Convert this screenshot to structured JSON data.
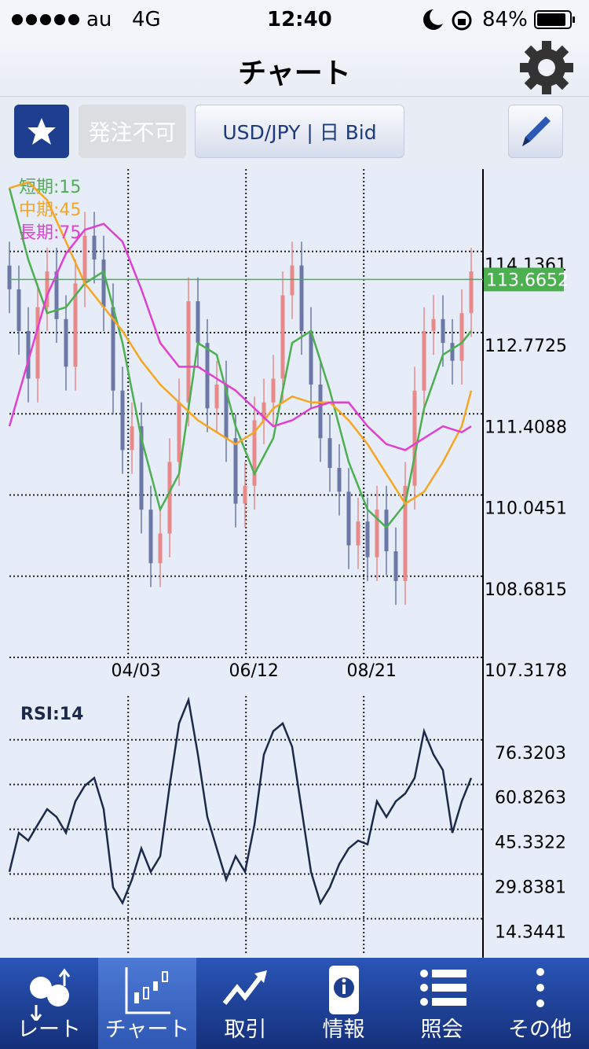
{
  "status_bar": {
    "carrier": "au",
    "network": "4G",
    "time": "12:40",
    "battery": "84%"
  },
  "header": {
    "title": "チャート"
  },
  "toolbar": {
    "order_status": "発注不可",
    "symbol": "USD/JPY | 日 Bid"
  },
  "chart_data": [
    {
      "type": "candlestick",
      "x": [
        0,
        1,
        2,
        3,
        4,
        5,
        6,
        7,
        8,
        9,
        10,
        11,
        12,
        13,
        14,
        15,
        16,
        17,
        18,
        19,
        20,
        21,
        22,
        23,
        24,
        25,
        26,
        27,
        28,
        29,
        30,
        31,
        32,
        33,
        34,
        35,
        36,
        37,
        38,
        39,
        40,
        41,
        42,
        43,
        44,
        45,
        46,
        47,
        48,
        49
      ],
      "open": [
        113.9,
        113.5,
        112.8,
        112.0,
        113.2,
        113.8,
        113.0,
        112.2,
        113.6,
        114.4,
        114.0,
        113.2,
        111.8,
        110.8,
        111.2,
        109.8,
        108.9,
        109.4,
        110.6,
        111.6,
        113.3,
        112.6,
        111.5,
        111.9,
        111.0,
        109.9,
        110.2,
        111.3,
        111.6,
        112.0,
        113.4,
        113.9,
        112.8,
        111.9,
        111.0,
        110.5,
        110.1,
        109.2,
        109.6,
        109.0,
        109.8,
        109.1,
        108.6,
        110.2,
        111.8,
        112.8,
        113.0,
        112.6,
        112.3,
        113.1
      ],
      "high": [
        114.3,
        113.9,
        113.2,
        113.6,
        114.2,
        114.2,
        113.4,
        114.0,
        114.8,
        114.8,
        114.4,
        113.6,
        112.2,
        111.6,
        111.6,
        110.2,
        109.8,
        111.0,
        112.0,
        113.7,
        113.7,
        113.0,
        112.3,
        112.3,
        111.4,
        110.6,
        111.7,
        112.0,
        112.4,
        113.8,
        114.3,
        114.3,
        113.2,
        112.3,
        111.4,
        110.9,
        110.5,
        110.0,
        110.0,
        110.2,
        110.2,
        109.5,
        110.6,
        112.2,
        113.2,
        113.4,
        113.4,
        113.0,
        113.5,
        114.2
      ],
      "low": [
        113.1,
        112.4,
        111.6,
        111.6,
        112.8,
        112.6,
        111.8,
        111.8,
        113.2,
        113.6,
        112.8,
        111.4,
        110.4,
        110.4,
        109.4,
        108.5,
        108.5,
        109.0,
        110.2,
        111.2,
        112.2,
        111.1,
        111.1,
        110.6,
        109.5,
        109.5,
        109.8,
        110.9,
        111.2,
        111.6,
        113.0,
        112.4,
        111.5,
        110.6,
        110.1,
        109.7,
        108.8,
        108.8,
        108.6,
        108.6,
        108.7,
        108.2,
        108.2,
        109.8,
        111.4,
        112.4,
        112.2,
        111.9,
        111.9,
        112.7
      ],
      "close": [
        113.5,
        112.8,
        112.0,
        113.2,
        113.8,
        113.0,
        112.2,
        113.6,
        114.4,
        114.0,
        113.2,
        111.8,
        110.8,
        111.2,
        109.8,
        108.9,
        109.4,
        110.6,
        111.6,
        113.3,
        112.6,
        111.5,
        111.9,
        111.0,
        109.9,
        110.2,
        111.3,
        111.6,
        112.0,
        113.4,
        113.9,
        112.8,
        111.9,
        111.0,
        110.5,
        110.1,
        109.2,
        109.6,
        109.0,
        109.8,
        109.1,
        108.6,
        110.2,
        111.8,
        112.8,
        113.0,
        112.6,
        112.3,
        113.1,
        113.8
      ],
      "up_color": "#e88a8a",
      "down_color": "#6b78a6",
      "series": [
        {
          "name": "短期:15",
          "color": "#4caf50",
          "x": [
            0,
            2,
            4,
            6,
            8,
            10,
            12,
            14,
            16,
            18,
            20,
            22,
            24,
            26,
            28,
            30,
            32,
            34,
            36,
            38,
            40,
            42,
            44,
            46,
            48,
            49
          ],
          "values": [
            115.2,
            114.0,
            113.1,
            113.2,
            113.6,
            113.8,
            112.6,
            111.0,
            109.8,
            110.4,
            112.6,
            112.4,
            111.2,
            110.4,
            111.0,
            112.6,
            112.8,
            111.8,
            110.6,
            109.8,
            109.5,
            109.9,
            111.5,
            112.4,
            112.6,
            112.8
          ]
        },
        {
          "name": "中期:45",
          "color": "#f5a623",
          "x": [
            0,
            2,
            4,
            6,
            8,
            10,
            12,
            14,
            16,
            18,
            20,
            22,
            24,
            26,
            28,
            30,
            32,
            34,
            36,
            38,
            40,
            42,
            44,
            46,
            48,
            49
          ],
          "values": [
            115.2,
            115.3,
            115.0,
            114.3,
            113.6,
            113.2,
            112.8,
            112.3,
            111.9,
            111.6,
            111.3,
            111.1,
            110.9,
            111.1,
            111.5,
            111.7,
            111.6,
            111.6,
            111.3,
            110.9,
            110.4,
            109.9,
            110.1,
            110.6,
            111.2,
            111.8
          ]
        },
        {
          "name": "長期:75",
          "color": "#e040d0",
          "x": [
            0,
            2,
            4,
            6,
            8,
            10,
            12,
            14,
            16,
            18,
            20,
            22,
            24,
            26,
            28,
            30,
            32,
            34,
            36,
            38,
            40,
            42,
            44,
            46,
            48,
            49
          ],
          "values": [
            111.2,
            112.3,
            113.4,
            114.1,
            114.5,
            114.6,
            114.3,
            113.5,
            112.6,
            112.2,
            112.2,
            112.0,
            111.8,
            111.5,
            111.2,
            111.3,
            111.5,
            111.6,
            111.6,
            111.2,
            110.9,
            110.8,
            111.0,
            111.2,
            111.1,
            111.2
          ]
        }
      ],
      "last_price": 113.6652,
      "last_price_color": "#4caf50",
      "xlim": [
        0,
        50.25
      ],
      "xticks": [
        {
          "value": 12.6,
          "label": "04/03"
        },
        {
          "value": 25.1,
          "label": "06/12"
        },
        {
          "value": 37.6,
          "label": "08/21"
        }
      ],
      "ylim": [
        107.3178,
        115.52
      ],
      "yticks": [
        114.1361,
        112.7725,
        111.4088,
        110.0451,
        108.6815,
        107.3178
      ],
      "grid": true
    },
    {
      "type": "line",
      "title": "RSI:14",
      "color": "#1c2a4a",
      "x": [
        0,
        1,
        2,
        3,
        4,
        5,
        6,
        7,
        8,
        9,
        10,
        11,
        12,
        13,
        14,
        15,
        16,
        17,
        18,
        19,
        20,
        21,
        22,
        23,
        24,
        25,
        26,
        27,
        28,
        29,
        30,
        31,
        32,
        33,
        34,
        35,
        36,
        37,
        38,
        39,
        40,
        41,
        42,
        43,
        44,
        45,
        46,
        47,
        48,
        49
      ],
      "values": [
        30.6,
        44.1,
        41.4,
        46.9,
        52.3,
        49.6,
        44.1,
        55.0,
        60.4,
        63.1,
        52.3,
        25.2,
        19.8,
        27.9,
        38.7,
        30.6,
        36.0,
        60.4,
        82.0,
        90.1,
        71.2,
        49.6,
        38.7,
        27.9,
        36.0,
        30.6,
        46.9,
        71.2,
        79.3,
        82.0,
        73.9,
        52.3,
        30.6,
        19.8,
        25.2,
        33.3,
        38.7,
        41.4,
        40.1,
        55.0,
        49.6,
        55.0,
        57.7,
        63.1,
        79.3,
        71.2,
        65.8,
        44.1,
        55.0,
        63.1
      ],
      "xlim": [
        0,
        50.25
      ],
      "xticks": [
        {
          "value": 12.6,
          "label": "04/03"
        },
        {
          "value": 25.1,
          "label": "06/12"
        },
        {
          "value": 37.6,
          "label": "08/21"
        }
      ],
      "ylim": [
        2.2,
        91.5
      ],
      "yticks": [
        76.3203,
        60.8263,
        45.3322,
        29.8381,
        14.3441
      ],
      "grid": true
    }
  ],
  "tab_bar": {
    "tabs": [
      "レート",
      "チャート",
      "取引",
      "情報",
      "照会",
      "その他"
    ],
    "active": 1
  }
}
